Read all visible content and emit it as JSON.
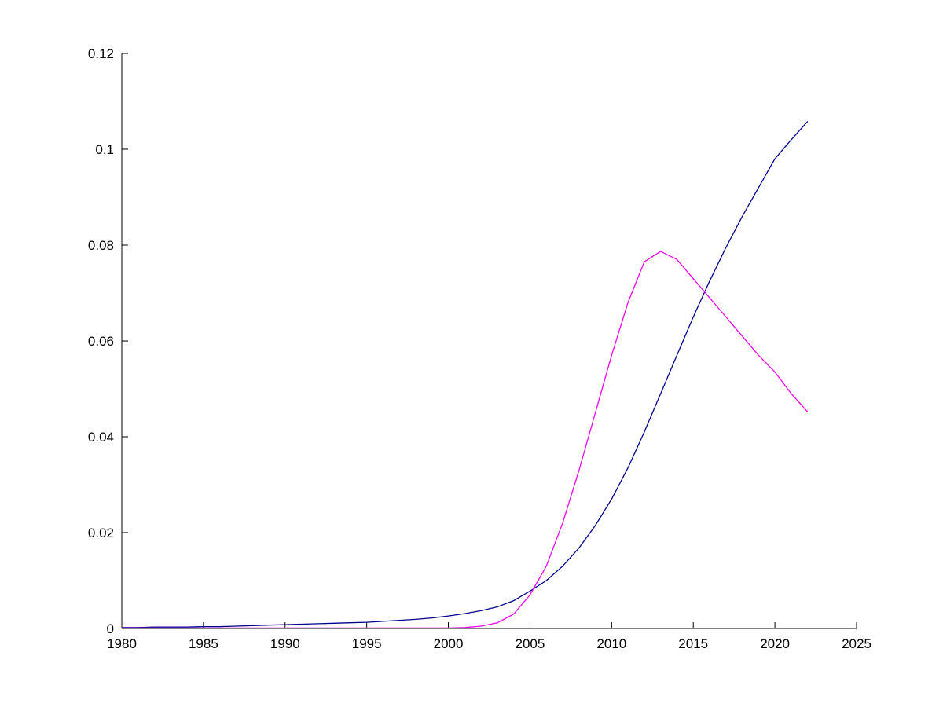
{
  "figure": {
    "background": "#ffffff",
    "axis_color": "#000000"
  },
  "chart_data": {
    "type": "line",
    "title": "",
    "xlabel": "",
    "ylabel": "",
    "grid": false,
    "legend": "none",
    "xlim": [
      1980,
      2025
    ],
    "ylim": [
      0,
      0.12
    ],
    "xticks": {
      "values": [
        1980,
        1985,
        1990,
        1995,
        2000,
        2005,
        2010,
        2015,
        2020,
        2025
      ],
      "labels": [
        "1980",
        "1985",
        "1990",
        "1995",
        "2000",
        "2005",
        "2010",
        "2015",
        "2020",
        "2025"
      ]
    },
    "yticks": {
      "values": [
        0,
        0.02,
        0.04,
        0.06,
        0.08,
        0.1,
        0.12
      ],
      "labels": [
        "0",
        "0.02",
        "0.04",
        "0.06",
        "0.08",
        "0.1",
        "0.12"
      ]
    },
    "x": [
      1980,
      1981,
      1982,
      1983,
      1984,
      1985,
      1986,
      1987,
      1988,
      1989,
      1990,
      1991,
      1992,
      1993,
      1994,
      1995,
      1996,
      1997,
      1998,
      1999,
      2000,
      2001,
      2002,
      2003,
      2004,
      2005,
      2006,
      2007,
      2008,
      2009,
      2010,
      2011,
      2012,
      2013,
      2014,
      2015,
      2016,
      2017,
      2018,
      2019,
      2020,
      2021,
      2022
    ],
    "series": [
      {
        "name": "blue-line",
        "color": "#00008B",
        "values": [
          0.0002,
          0.0002,
          0.0003,
          0.0003,
          0.0003,
          0.0004,
          0.0004,
          0.0005,
          0.0006,
          0.0007,
          0.0008,
          0.0009,
          0.001,
          0.0011,
          0.0012,
          0.0013,
          0.0015,
          0.0017,
          0.0019,
          0.0022,
          0.0026,
          0.0031,
          0.0037,
          0.0045,
          0.0058,
          0.0078,
          0.01,
          0.013,
          0.0168,
          0.0215,
          0.027,
          0.0335,
          0.041,
          0.049,
          0.057,
          0.065,
          0.0725,
          0.0795,
          0.086,
          0.092,
          0.098,
          0.102,
          0.1058
        ]
      },
      {
        "name": "magenta-line",
        "color": "#EE00EE",
        "values": [
          0.0001,
          0.0001,
          0.0001,
          0.0001,
          0.0001,
          0.0001,
          0.0001,
          0.0001,
          0.0001,
          0.0001,
          0.0001,
          0.0001,
          0.0001,
          0.0001,
          0.0001,
          0.0001,
          0.0001,
          0.0001,
          0.0001,
          0.0001,
          0.0001,
          0.0002,
          0.0005,
          0.0012,
          0.003,
          0.007,
          0.013,
          0.022,
          0.033,
          0.045,
          0.057,
          0.068,
          0.0765,
          0.0787,
          0.077,
          0.073,
          0.069,
          0.065,
          0.061,
          0.057,
          0.0535,
          0.049,
          0.0452
        ]
      }
    ]
  }
}
